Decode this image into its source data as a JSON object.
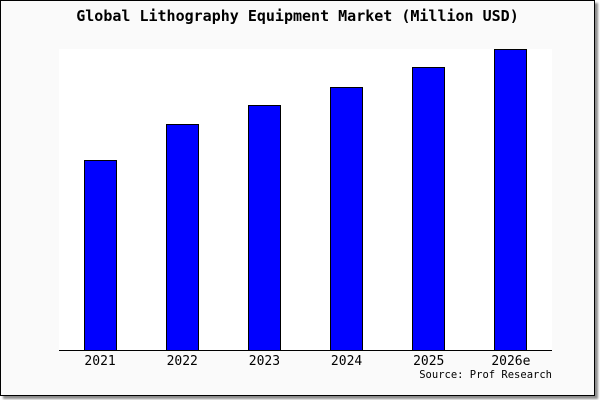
{
  "chart_data": {
    "type": "bar",
    "title": "Global Lithography Equipment Market (Million USD)",
    "categories": [
      "2021",
      "2022",
      "2023",
      "2024",
      "2025",
      "2026e"
    ],
    "values": [
      63,
      75,
      81.5,
      87.5,
      94,
      100
    ],
    "value_scale_note": "y-axis is unlabeled in chart; values are relative bar heights as percent of the 2026e bar",
    "xlabel": "",
    "ylabel": "",
    "ylim": [
      0,
      100
    ],
    "grid": false,
    "legend": "none",
    "y_axis_visible": false,
    "bar_color": "#0000FF",
    "bar_border_color": "#000000",
    "axis_color": "#000000",
    "plot_bg": "#FFFFFF",
    "frame_bg": "#FAFAFA",
    "source": "Source: Prof Research"
  }
}
